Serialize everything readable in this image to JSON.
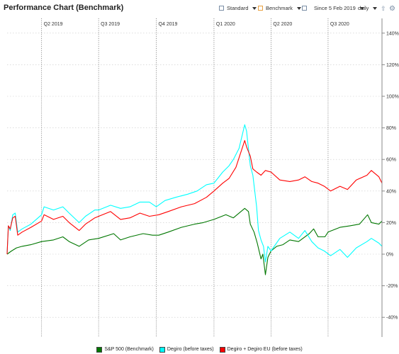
{
  "header": {
    "title": "Performance Chart (Benchmark)",
    "standard_label": "Standard",
    "benchmark_label": "Benchmark",
    "since_label": "Since 5 Feb 2019",
    "interval_label": "daily"
  },
  "icons": {
    "standard": "chart-icon",
    "benchmark": "chart-icon",
    "calendar": "calendar-icon",
    "export": "export-icon",
    "settings": "gear-icon"
  },
  "colors": {
    "sp500": "#007700",
    "degiro": "#00ffff",
    "degiro_eu": "#ff0000",
    "benchmark_icon": "#e8a040"
  },
  "chart_data": {
    "type": "line",
    "title": "Performance Chart (Benchmark)",
    "x_range": [
      "2019-02-05",
      "2020-09-25"
    ],
    "ylim": [
      -50,
      145
    ],
    "y_ticks": [
      -40,
      -20,
      0,
      20,
      40,
      60,
      80,
      100,
      120,
      140
    ],
    "y_tick_labels": [
      "-40%",
      "-20%",
      "0%",
      "20%",
      "40%",
      "60%",
      "80%",
      "100%",
      "120%",
      "140%"
    ],
    "quarter_markers": [
      {
        "label": "Q2 2019",
        "date": "2019-04-01"
      },
      {
        "label": "Q3 2019",
        "date": "2019-07-01"
      },
      {
        "label": "Q4 2019",
        "date": "2019-10-01"
      },
      {
        "label": "Q1 2020",
        "date": "2020-01-01"
      },
      {
        "label": "Q2 2020",
        "date": "2020-04-01"
      },
      {
        "label": "Q3 2020",
        "date": "2020-07-01"
      }
    ],
    "grid": true,
    "legend_position": "bottom",
    "series": [
      {
        "name": "S&P 500 (Benchmark)",
        "color": "#007700",
        "points": [
          [
            "2019-02-05",
            0
          ],
          [
            "2019-02-12",
            2
          ],
          [
            "2019-02-20",
            4
          ],
          [
            "2019-03-01",
            5
          ],
          [
            "2019-03-15",
            6
          ],
          [
            "2019-04-01",
            8
          ],
          [
            "2019-04-20",
            9
          ],
          [
            "2019-05-05",
            11
          ],
          [
            "2019-05-15",
            8
          ],
          [
            "2019-05-31",
            5
          ],
          [
            "2019-06-15",
            9
          ],
          [
            "2019-07-01",
            10
          ],
          [
            "2019-07-25",
            13
          ],
          [
            "2019-08-05",
            9
          ],
          [
            "2019-08-20",
            11
          ],
          [
            "2019-09-10",
            13
          ],
          [
            "2019-09-25",
            12
          ],
          [
            "2019-10-05",
            12
          ],
          [
            "2019-10-20",
            14
          ],
          [
            "2019-11-10",
            17
          ],
          [
            "2019-12-01",
            19
          ],
          [
            "2019-12-15",
            20
          ],
          [
            "2020-01-01",
            22
          ],
          [
            "2020-01-20",
            25
          ],
          [
            "2020-02-01",
            23
          ],
          [
            "2020-02-19",
            29
          ],
          [
            "2020-02-25",
            27
          ],
          [
            "2020-02-28",
            19
          ],
          [
            "2020-03-05",
            14
          ],
          [
            "2020-03-10",
            7
          ],
          [
            "2020-03-16",
            -3
          ],
          [
            "2020-03-19",
            0
          ],
          [
            "2020-03-23",
            -13
          ],
          [
            "2020-03-27",
            -2
          ],
          [
            "2020-04-01",
            2
          ],
          [
            "2020-04-10",
            5
          ],
          [
            "2020-04-20",
            6
          ],
          [
            "2020-05-01",
            9
          ],
          [
            "2020-05-15",
            8
          ],
          [
            "2020-06-01",
            13
          ],
          [
            "2020-06-08",
            16
          ],
          [
            "2020-06-15",
            11
          ],
          [
            "2020-06-26",
            11
          ],
          [
            "2020-07-01",
            14
          ],
          [
            "2020-07-20",
            17
          ],
          [
            "2020-08-05",
            18
          ],
          [
            "2020-08-20",
            19
          ],
          [
            "2020-09-02",
            25
          ],
          [
            "2020-09-08",
            20
          ],
          [
            "2020-09-20",
            19
          ],
          [
            "2020-09-25",
            21
          ]
        ]
      },
      {
        "name": "Degiro (before taxes)",
        "color": "#00ffff",
        "points": [
          [
            "2019-02-05",
            0
          ],
          [
            "2019-02-07",
            18
          ],
          [
            "2019-02-10",
            15
          ],
          [
            "2019-02-14",
            25
          ],
          [
            "2019-02-18",
            26
          ],
          [
            "2019-02-22",
            14
          ],
          [
            "2019-03-01",
            16
          ],
          [
            "2019-03-15",
            19
          ],
          [
            "2019-04-01",
            25
          ],
          [
            "2019-04-05",
            30
          ],
          [
            "2019-04-20",
            28
          ],
          [
            "2019-05-05",
            30
          ],
          [
            "2019-05-15",
            26
          ],
          [
            "2019-05-31",
            20
          ],
          [
            "2019-06-10",
            24
          ],
          [
            "2019-06-25",
            28
          ],
          [
            "2019-07-01",
            28
          ],
          [
            "2019-07-20",
            31
          ],
          [
            "2019-08-05",
            29
          ],
          [
            "2019-08-20",
            30
          ],
          [
            "2019-09-05",
            33
          ],
          [
            "2019-09-20",
            33
          ],
          [
            "2019-10-01",
            30
          ],
          [
            "2019-10-15",
            34
          ],
          [
            "2019-11-01",
            36
          ],
          [
            "2019-11-20",
            38
          ],
          [
            "2019-12-05",
            40
          ],
          [
            "2019-12-20",
            44
          ],
          [
            "2020-01-01",
            45
          ],
          [
            "2020-01-15",
            52
          ],
          [
            "2020-01-25",
            56
          ],
          [
            "2020-02-01",
            60
          ],
          [
            "2020-02-10",
            67
          ],
          [
            "2020-02-19",
            82
          ],
          [
            "2020-02-22",
            78
          ],
          [
            "2020-02-28",
            56
          ],
          [
            "2020-03-03",
            50
          ],
          [
            "2020-03-09",
            30
          ],
          [
            "2020-03-12",
            15
          ],
          [
            "2020-03-16",
            9
          ],
          [
            "2020-03-20",
            5
          ],
          [
            "2020-03-23",
            -5
          ],
          [
            "2020-03-27",
            5
          ],
          [
            "2020-04-01",
            2
          ],
          [
            "2020-04-15",
            10
          ],
          [
            "2020-05-01",
            14
          ],
          [
            "2020-05-15",
            10
          ],
          [
            "2020-05-25",
            15
          ],
          [
            "2020-06-05",
            8
          ],
          [
            "2020-06-15",
            4
          ],
          [
            "2020-06-25",
            2
          ],
          [
            "2020-07-05",
            -1
          ],
          [
            "2020-07-20",
            3
          ],
          [
            "2020-08-01",
            -2
          ],
          [
            "2020-08-15",
            4
          ],
          [
            "2020-09-01",
            8
          ],
          [
            "2020-09-08",
            10
          ],
          [
            "2020-09-20",
            7
          ],
          [
            "2020-09-25",
            5
          ]
        ]
      },
      {
        "name": "Degiro + Degiro EU (before taxes)",
        "color": "#ff0000",
        "points": [
          [
            "2019-02-05",
            0
          ],
          [
            "2019-02-07",
            18
          ],
          [
            "2019-02-10",
            16
          ],
          [
            "2019-02-14",
            23
          ],
          [
            "2019-02-18",
            24
          ],
          [
            "2019-02-22",
            12
          ],
          [
            "2019-03-01",
            14
          ],
          [
            "2019-03-15",
            17
          ],
          [
            "2019-04-01",
            21
          ],
          [
            "2019-04-05",
            25
          ],
          [
            "2019-04-20",
            22
          ],
          [
            "2019-05-05",
            24
          ],
          [
            "2019-05-15",
            20
          ],
          [
            "2019-05-31",
            15
          ],
          [
            "2019-06-10",
            19
          ],
          [
            "2019-06-25",
            23
          ],
          [
            "2019-07-01",
            24
          ],
          [
            "2019-07-20",
            27
          ],
          [
            "2019-08-05",
            22
          ],
          [
            "2019-08-20",
            23
          ],
          [
            "2019-09-05",
            26
          ],
          [
            "2019-09-20",
            24
          ],
          [
            "2019-10-05",
            25
          ],
          [
            "2019-10-20",
            27
          ],
          [
            "2019-11-10",
            30
          ],
          [
            "2019-12-01",
            32
          ],
          [
            "2019-12-20",
            36
          ],
          [
            "2020-01-01",
            40
          ],
          [
            "2020-01-15",
            45
          ],
          [
            "2020-01-25",
            48
          ],
          [
            "2020-02-05",
            55
          ],
          [
            "2020-02-19",
            72
          ],
          [
            "2020-02-22",
            68
          ],
          [
            "2020-02-28",
            62
          ],
          [
            "2020-03-03",
            54
          ],
          [
            "2020-03-09",
            52
          ],
          [
            "2020-03-16",
            50
          ],
          [
            "2020-03-23",
            53
          ],
          [
            "2020-04-01",
            52
          ],
          [
            "2020-04-15",
            47
          ],
          [
            "2020-05-01",
            46
          ],
          [
            "2020-05-15",
            47
          ],
          [
            "2020-05-25",
            49
          ],
          [
            "2020-06-05",
            46
          ],
          [
            "2020-06-15",
            45
          ],
          [
            "2020-06-25",
            43
          ],
          [
            "2020-07-05",
            40
          ],
          [
            "2020-07-20",
            43
          ],
          [
            "2020-08-01",
            41
          ],
          [
            "2020-08-15",
            47
          ],
          [
            "2020-09-01",
            50
          ],
          [
            "2020-09-08",
            53
          ],
          [
            "2020-09-20",
            49
          ],
          [
            "2020-09-25",
            45
          ]
        ]
      }
    ]
  }
}
